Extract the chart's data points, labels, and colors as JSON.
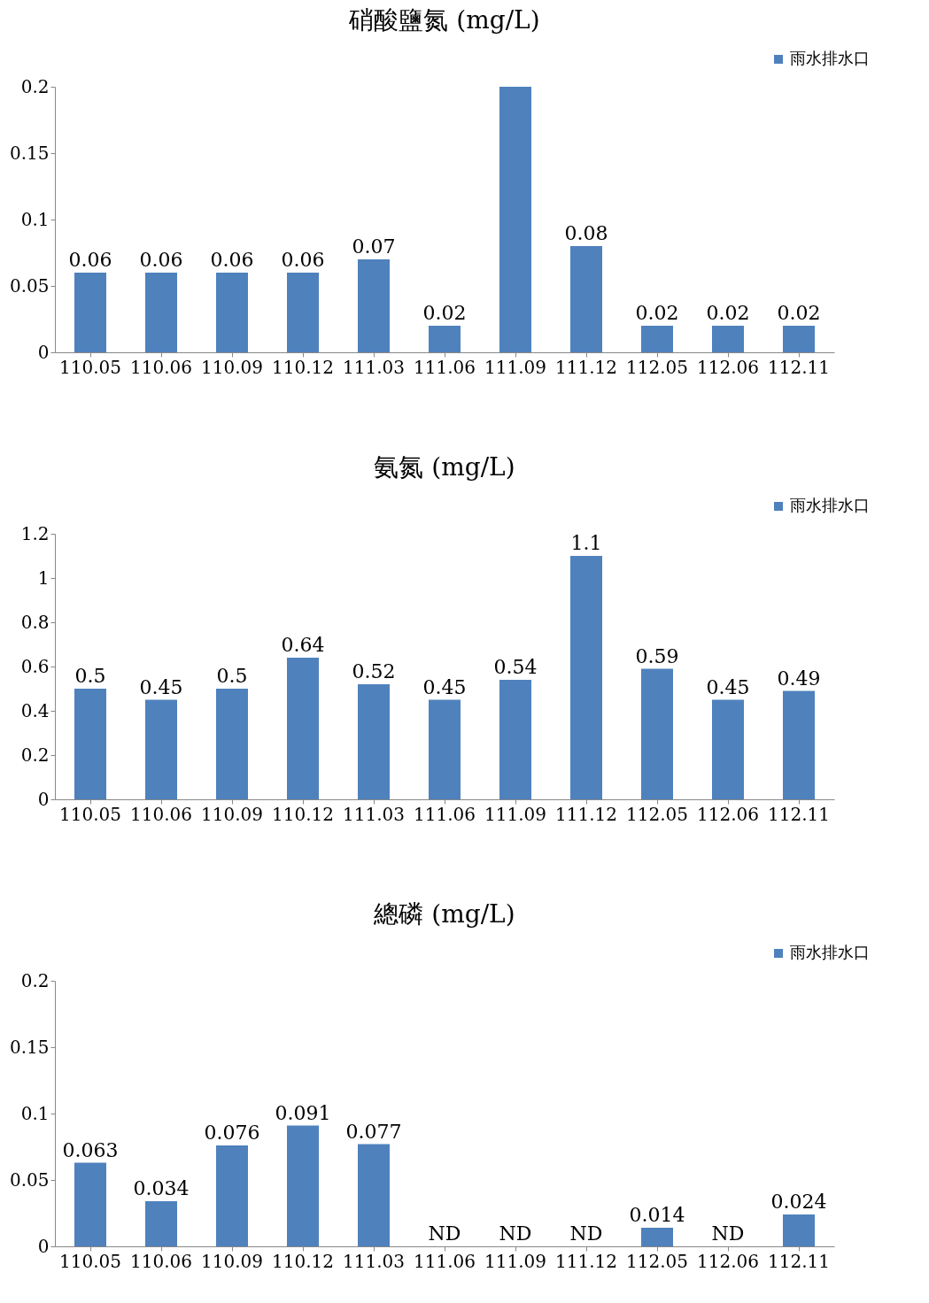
{
  "chart_data": [
    {
      "type": "bar",
      "title": "硝酸鹽氮 (mg/L)",
      "categories": [
        "110.05",
        "110.06",
        "110.09",
        "110.12",
        "111.03",
        "111.06",
        "111.09",
        "111.12",
        "112.05",
        "112.06",
        "112.11"
      ],
      "series": [
        {
          "name": "雨水排水口",
          "color": "#4f81bd",
          "values": [
            0.06,
            0.06,
            0.06,
            0.06,
            0.07,
            0.02,
            0.2,
            0.08,
            0.02,
            0.02,
            0.02
          ]
        }
      ],
      "value_labels": [
        "0.06",
        "0.06",
        "0.06",
        "0.06",
        "0.07",
        "0.02",
        null,
        "0.08",
        "0.02",
        "0.02",
        "0.02"
      ],
      "ylim": [
        0,
        0.2
      ],
      "yticks": [
        0,
        0.05,
        0.1,
        0.15,
        0.2
      ],
      "legend": "top right",
      "grid": false
    },
    {
      "type": "bar",
      "title": "氨氮 (mg/L)",
      "categories": [
        "110.05",
        "110.06",
        "110.09",
        "110.12",
        "111.03",
        "111.06",
        "111.09",
        "111.12",
        "112.05",
        "112.06",
        "112.11"
      ],
      "series": [
        {
          "name": "雨水排水口",
          "color": "#4f81bd",
          "values": [
            0.5,
            0.45,
            0.5,
            0.64,
            0.52,
            0.45,
            0.54,
            1.1,
            0.59,
            0.45,
            0.49
          ]
        }
      ],
      "data_labels": true,
      "ylim": [
        0,
        1.2
      ],
      "yticks": [
        0,
        0.2,
        0.4,
        0.6,
        0.8,
        1,
        1.2
      ],
      "legend": "top right",
      "grid": false
    },
    {
      "type": "bar",
      "title": "總磷 (mg/L)",
      "categories": [
        "110.05",
        "110.06",
        "110.09",
        "110.12",
        "111.03",
        "111.06",
        "111.09",
        "111.12",
        "112.05",
        "112.06",
        "112.11"
      ],
      "series": [
        {
          "name": "雨水排水口",
          "color": "#4f81bd",
          "values": [
            0.063,
            0.034,
            0.076,
            0.091,
            0.077,
            null,
            null,
            null,
            0.014,
            null,
            0.024
          ]
        }
      ],
      "value_labels": [
        "0.063",
        "0.034",
        "0.076",
        "0.091",
        "0.077",
        "ND",
        "ND",
        "ND",
        "0.014",
        "ND",
        "0.024"
      ],
      "ylim": [
        0,
        0.2
      ],
      "yticks": [
        0,
        0.05,
        0.1,
        0.15,
        0.2
      ],
      "legend": "top right",
      "grid": false
    }
  ]
}
